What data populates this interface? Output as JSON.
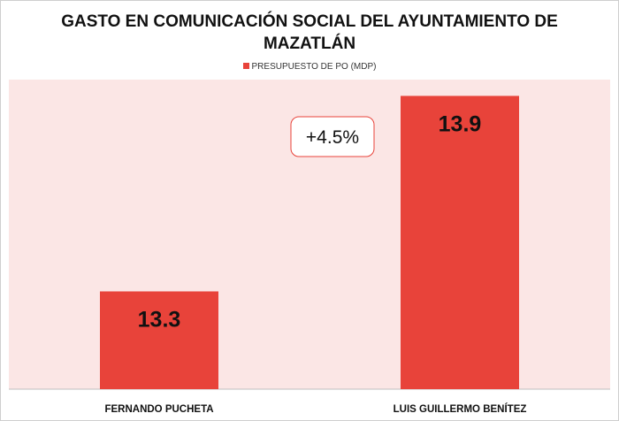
{
  "chart_data": {
    "type": "bar",
    "title": "GASTO EN COMUNICACIÓN SOCIAL DEL AYUNTAMIENTO DE MAZATLÁN",
    "categories": [
      "FERNANDO PUCHETA",
      "LUIS GUILLERMO BENÍTEZ"
    ],
    "series": [
      {
        "name": "PRESUPUESTO DE PO (MDP)",
        "values": [
          13.3,
          13.9
        ],
        "color": "#e8433a"
      }
    ],
    "data_labels": [
      "13.3",
      "13.9"
    ],
    "annotation": "+4.5%",
    "ylim": [
      13.0,
      13.95
    ],
    "legend_position": "top",
    "plot_background": "#fbe6e5",
    "grid": false
  }
}
